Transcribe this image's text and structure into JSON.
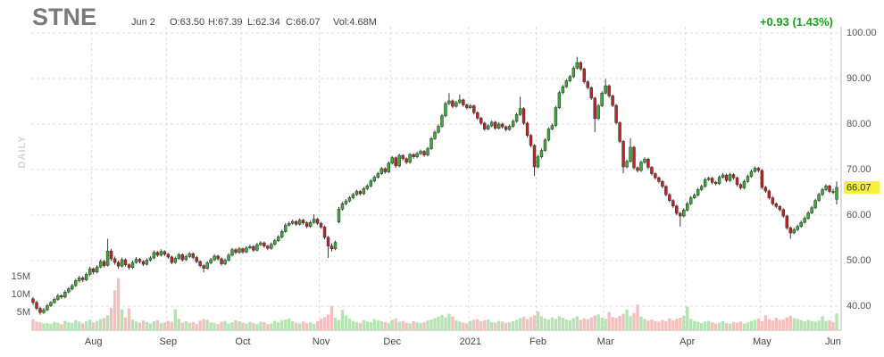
{
  "header": {
    "ticker": "STNE",
    "date": "Jun 2",
    "open": "O:63.50",
    "high": "H:67.39",
    "low": "L:62.34",
    "close": "C:66.07",
    "volume": "Vol:4.68M",
    "change": "+0.93 (1.43%)",
    "period": "DAILY"
  },
  "chart_data": {
    "type": "candlestick",
    "categories": [
      null,
      null,
      null,
      null,
      null,
      null,
      null,
      null,
      null,
      null,
      null,
      null,
      null,
      null,
      null,
      null,
      null,
      "Aug",
      null,
      null,
      null,
      null,
      null,
      null,
      null,
      null,
      null,
      null,
      null,
      null,
      null,
      null,
      null,
      null,
      null,
      null,
      null,
      null,
      "Sep",
      null,
      null,
      null,
      null,
      null,
      null,
      null,
      null,
      null,
      null,
      null,
      null,
      null,
      null,
      null,
      null,
      null,
      null,
      null,
      null,
      "Oct",
      null,
      null,
      null,
      null,
      null,
      null,
      null,
      null,
      null,
      null,
      null,
      null,
      null,
      null,
      null,
      null,
      null,
      null,
      null,
      null,
      null,
      "Nov",
      null,
      null,
      null,
      null,
      null,
      null,
      null,
      null,
      null,
      null,
      null,
      null,
      null,
      null,
      null,
      null,
      null,
      null,
      null,
      "Dec",
      null,
      null,
      null,
      null,
      null,
      null,
      null,
      null,
      null,
      null,
      null,
      null,
      null,
      null,
      null,
      null,
      null,
      null,
      null,
      null,
      null,
      "2021",
      null,
      null,
      null,
      null,
      null,
      null,
      null,
      null,
      null,
      null,
      null,
      null,
      null,
      null,
      null,
      null,
      null,
      null,
      "Feb",
      null,
      null,
      null,
      null,
      null,
      null,
      null,
      null,
      null,
      null,
      null,
      null,
      null,
      null,
      null,
      null,
      null,
      null,
      "Mar",
      null,
      null,
      null,
      null,
      null,
      null,
      null,
      null,
      null,
      null,
      null,
      null,
      null,
      null,
      null,
      null,
      null,
      null,
      null,
      null,
      null,
      null,
      "Apr",
      null,
      null,
      null,
      null,
      null,
      null,
      null,
      null,
      null,
      null,
      null,
      null,
      null,
      null,
      null,
      null,
      null,
      null,
      null,
      null,
      "May",
      null,
      null,
      null,
      null,
      null,
      null,
      null,
      null,
      null,
      null,
      null,
      null,
      null,
      null,
      null,
      null,
      null,
      null,
      null,
      "Jun",
      null
    ],
    "open": [
      41.6,
      40.8,
      39.5,
      38.6,
      39.2,
      40.1,
      40.8,
      41.5,
      42.3,
      42.0,
      43.1,
      43.8,
      44.5,
      45.6,
      46.2,
      45.8,
      47.0,
      48.2,
      47.5,
      48.6,
      49.8,
      49.0,
      52.1,
      50.4,
      49.6,
      48.8,
      50.2,
      49.1,
      48.5,
      49.6,
      50.3,
      49.8,
      49.2,
      50.1,
      50.6,
      51.8,
      51.2,
      52.0,
      51.4,
      50.8,
      49.6,
      50.5,
      51.3,
      50.2,
      50.9,
      51.5,
      50.7,
      49.8,
      48.9,
      48.3,
      49.5,
      50.2,
      51.0,
      50.4,
      49.3,
      50.1,
      51.2,
      52.4,
      51.8,
      52.6,
      51.9,
      52.8,
      53.1,
      52.3,
      53.5,
      53.9,
      53.2,
      52.7,
      53.6,
      54.4,
      55.2,
      56.4,
      57.8,
      58.2,
      58.6,
      58.0,
      58.9,
      58.3,
      57.5,
      58.4,
      59.1,
      58.2,
      57.4,
      55.1,
      53.2,
      52.6,
      58.5,
      61.3,
      62.5,
      63.1,
      63.8,
      64.5,
      65.2,
      64.7,
      65.8,
      66.4,
      67.5,
      68.3,
      69.1,
      70.2,
      69.5,
      71.4,
      72.6,
      70.8,
      73.1,
      72.4,
      71.6,
      73.3,
      72.8,
      73.5,
      74.0,
      73.2,
      74.6,
      76.8,
      78.2,
      79.5,
      81.8,
      84.5,
      85.1,
      83.9,
      84.7,
      85.3,
      84.2,
      83.6,
      84.0,
      82.5,
      81.3,
      80.2,
      78.9,
      79.6,
      80.4,
      79.1,
      80.0,
      79.4,
      78.8,
      79.5,
      80.6,
      82.1,
      83.4,
      80.2,
      77.5,
      75.3,
      70.6,
      72.8,
      74.2,
      76.5,
      78.9,
      79.7,
      83.6,
      86.9,
      88.2,
      89.5,
      90.4,
      92.3,
      93.5,
      92.1,
      89.3,
      88.0,
      85.7,
      81.2,
      84.0,
      86.8,
      88.4,
      86.2,
      84.1,
      80.3,
      76.2,
      70.6,
      71.8,
      74.9,
      70.4,
      69.8,
      71.6,
      72.3,
      70.5,
      69.1,
      68.2,
      67.4,
      66.3,
      64.5,
      63.2,
      62.0,
      60.4,
      59.8,
      61.1,
      62.5,
      63.8,
      64.4,
      65.6,
      66.3,
      67.8,
      68.1,
      67.2,
      66.9,
      68.3,
      68.8,
      67.6,
      68.9,
      68.2,
      66.7,
      66.0,
      67.4,
      68.5,
      69.6,
      70.3,
      69.8,
      66.1,
      65.3,
      63.8,
      62.5,
      61.9,
      61.2,
      59.8,
      57.2,
      56.1,
      56.8,
      57.5,
      58.4,
      59.3,
      60.5,
      61.6,
      63.2,
      64.5,
      65.6,
      66.4,
      65.2,
      63.5
    ],
    "high": [
      42.0,
      41.2,
      39.9,
      39.6,
      40.5,
      41.1,
      41.9,
      42.7,
      42.6,
      43.5,
      44.2,
      44.9,
      46.0,
      46.7,
      46.6,
      47.4,
      48.7,
      48.5,
      49.0,
      50.3,
      50.2,
      54.8,
      52.6,
      50.9,
      50.0,
      50.7,
      50.5,
      49.4,
      50.0,
      50.8,
      50.6,
      50.1,
      50.5,
      51.0,
      52.2,
      52.1,
      52.5,
      52.3,
      51.7,
      51.1,
      50.9,
      51.7,
      51.6,
      51.3,
      51.9,
      51.8,
      51.0,
      50.1,
      49.2,
      49.9,
      50.6,
      51.4,
      51.3,
      50.7,
      50.5,
      51.6,
      52.8,
      52.7,
      53.0,
      52.9,
      53.2,
      53.5,
      53.4,
      53.9,
      54.3,
      54.2,
      53.5,
      54.0,
      54.8,
      55.6,
      56.8,
      58.2,
      58.6,
      59.0,
      58.9,
      59.3,
      59.2,
      58.6,
      58.8,
      60.2,
      59.4,
      58.5,
      57.7,
      55.4,
      53.8,
      54.4,
      61.8,
      62.9,
      63.5,
      64.2,
      64.9,
      65.6,
      65.5,
      66.2,
      66.8,
      67.9,
      68.7,
      69.5,
      70.6,
      70.5,
      71.8,
      73.0,
      72.9,
      73.5,
      73.4,
      72.7,
      73.7,
      73.6,
      73.9,
      74.4,
      74.3,
      75.0,
      77.2,
      78.6,
      79.9,
      82.2,
      84.9,
      86.8,
      85.4,
      85.1,
      86.5,
      85.6,
      84.5,
      84.4,
      84.3,
      82.8,
      81.6,
      80.5,
      80.0,
      80.8,
      80.7,
      80.4,
      80.3,
      79.7,
      79.9,
      81.0,
      82.5,
      86.0,
      83.7,
      80.5,
      77.8,
      75.6,
      73.2,
      74.6,
      76.9,
      79.3,
      80.1,
      84.0,
      87.3,
      88.6,
      89.9,
      90.8,
      92.7,
      94.8,
      93.8,
      92.4,
      89.6,
      88.3,
      86.0,
      84.4,
      87.2,
      89.9,
      88.7,
      86.5,
      84.4,
      80.6,
      76.5,
      72.2,
      76.9,
      75.2,
      70.7,
      72.0,
      72.7,
      72.6,
      70.8,
      69.4,
      68.5,
      67.7,
      66.6,
      64.8,
      63.5,
      62.3,
      60.7,
      61.5,
      62.9,
      64.2,
      64.8,
      66.0,
      66.7,
      68.2,
      68.5,
      68.4,
      67.5,
      68.7,
      69.2,
      69.1,
      69.3,
      69.2,
      68.5,
      67.0,
      67.8,
      68.9,
      70.0,
      70.7,
      70.6,
      70.1,
      66.4,
      65.6,
      64.1,
      62.8,
      62.2,
      61.5,
      60.1,
      57.5,
      57.2,
      57.9,
      58.8,
      59.7,
      60.9,
      62.0,
      63.6,
      64.9,
      66.0,
      66.8,
      66.7,
      65.8,
      67.39
    ],
    "low": [
      40.3,
      39.1,
      38.1,
      38.3,
      38.9,
      39.8,
      40.5,
      41.2,
      41.6,
      41.7,
      42.8,
      43.4,
      44.2,
      45.2,
      45.3,
      45.5,
      46.6,
      47.0,
      47.2,
      48.3,
      48.5,
      48.7,
      49.9,
      49.1,
      48.2,
      48.5,
      48.7,
      48.0,
      48.2,
      49.3,
      49.4,
      48.8,
      48.9,
      49.8,
      50.3,
      50.8,
      50.9,
      51.0,
      50.4,
      49.2,
      49.3,
      50.2,
      49.8,
      49.9,
      50.6,
      50.3,
      49.4,
      48.5,
      47.4,
      48.0,
      49.2,
      49.9,
      50.0,
      48.9,
      49.0,
      49.8,
      50.9,
      51.4,
      51.5,
      51.5,
      51.6,
      52.5,
      51.9,
      52.0,
      53.2,
      52.8,
      52.3,
      52.4,
      53.3,
      54.1,
      54.9,
      56.1,
      57.5,
      57.9,
      57.6,
      57.7,
      57.9,
      57.1,
      57.2,
      58.1,
      57.8,
      57.0,
      54.7,
      50.6,
      52.0,
      52.3,
      58.2,
      61.0,
      62.2,
      62.8,
      63.5,
      64.2,
      64.3,
      64.4,
      65.5,
      66.1,
      67.2,
      68.0,
      68.8,
      69.1,
      69.2,
      71.1,
      70.4,
      70.5,
      72.0,
      71.2,
      71.3,
      72.4,
      72.5,
      73.2,
      72.8,
      72.9,
      74.3,
      76.5,
      77.9,
      79.2,
      81.5,
      84.2,
      83.5,
      83.6,
      84.4,
      83.8,
      83.2,
      83.3,
      82.1,
      80.9,
      79.8,
      78.5,
      78.6,
      79.3,
      78.7,
      78.8,
      79.0,
      78.4,
      78.5,
      79.2,
      80.3,
      81.8,
      79.8,
      77.1,
      74.9,
      68.6,
      70.3,
      72.5,
      73.9,
      76.2,
      78.6,
      79.4,
      83.3,
      86.6,
      87.9,
      89.2,
      90.1,
      92.0,
      91.7,
      88.9,
      87.6,
      85.3,
      78.2,
      80.9,
      83.7,
      86.5,
      85.8,
      83.7,
      79.9,
      75.8,
      69.2,
      70.3,
      71.5,
      70.0,
      69.4,
      69.5,
      71.3,
      70.1,
      68.7,
      67.8,
      67.0,
      65.9,
      64.1,
      62.8,
      61.6,
      60.0,
      57.5,
      59.5,
      60.8,
      62.2,
      63.5,
      64.1,
      65.3,
      66.0,
      67.5,
      66.8,
      66.5,
      66.6,
      68.0,
      67.2,
      67.3,
      67.8,
      66.3,
      65.6,
      65.7,
      67.1,
      68.2,
      69.3,
      69.4,
      65.7,
      64.9,
      63.4,
      62.1,
      61.5,
      60.8,
      59.4,
      56.8,
      54.8,
      55.8,
      56.5,
      57.2,
      58.1,
      59.0,
      60.2,
      61.3,
      62.9,
      64.2,
      65.3,
      64.8,
      64.6,
      62.34
    ],
    "close": [
      40.8,
      39.5,
      38.6,
      39.2,
      40.1,
      40.8,
      41.5,
      42.3,
      42.0,
      43.1,
      43.8,
      44.5,
      45.6,
      46.2,
      45.8,
      47.0,
      48.2,
      47.5,
      48.6,
      49.8,
      48.9,
      52.1,
      50.4,
      49.6,
      48.8,
      50.2,
      49.1,
      48.5,
      49.6,
      50.3,
      49.8,
      49.2,
      50.1,
      50.6,
      51.8,
      51.2,
      52.0,
      51.4,
      50.8,
      49.6,
      50.5,
      51.3,
      50.2,
      50.9,
      51.5,
      50.7,
      49.8,
      48.9,
      48.3,
      49.5,
      50.2,
      51.0,
      50.4,
      49.3,
      50.1,
      51.2,
      52.4,
      51.8,
      52.6,
      51.9,
      52.8,
      53.1,
      52.3,
      53.5,
      53.9,
      53.2,
      52.7,
      53.6,
      54.4,
      55.2,
      56.4,
      57.8,
      58.2,
      58.6,
      58.0,
      58.9,
      58.3,
      57.5,
      58.4,
      59.1,
      58.2,
      57.4,
      55.1,
      53.2,
      52.6,
      54.0,
      61.3,
      62.5,
      63.1,
      63.8,
      64.5,
      65.2,
      64.7,
      65.8,
      66.4,
      67.5,
      68.3,
      69.1,
      70.2,
      69.5,
      71.4,
      72.6,
      70.8,
      73.1,
      72.4,
      71.6,
      73.3,
      72.8,
      73.5,
      74.0,
      73.2,
      74.6,
      76.8,
      78.2,
      79.5,
      81.8,
      84.5,
      85.1,
      83.9,
      84.7,
      85.3,
      84.2,
      83.6,
      84.0,
      82.5,
      81.3,
      80.2,
      78.9,
      79.6,
      80.4,
      79.1,
      80.0,
      79.4,
      78.8,
      79.5,
      80.6,
      82.1,
      83.4,
      80.2,
      77.5,
      75.3,
      70.6,
      72.8,
      74.2,
      76.5,
      78.9,
      79.7,
      83.6,
      86.9,
      88.2,
      89.5,
      90.4,
      92.3,
      93.5,
      92.1,
      89.3,
      88.0,
      85.7,
      81.2,
      84.0,
      86.8,
      88.4,
      86.2,
      84.1,
      80.3,
      76.2,
      70.6,
      71.8,
      74.9,
      70.4,
      69.8,
      71.6,
      72.3,
      70.5,
      69.1,
      68.2,
      67.4,
      66.3,
      64.5,
      63.2,
      62.0,
      60.4,
      59.8,
      61.1,
      62.5,
      63.8,
      64.4,
      65.6,
      66.3,
      67.8,
      68.1,
      67.2,
      66.9,
      68.3,
      68.8,
      67.6,
      68.9,
      68.2,
      66.7,
      66.0,
      67.4,
      68.5,
      69.6,
      70.3,
      69.8,
      66.1,
      65.3,
      63.8,
      62.5,
      61.9,
      61.2,
      59.8,
      57.2,
      56.1,
      56.8,
      57.5,
      58.4,
      59.3,
      60.5,
      61.6,
      63.2,
      64.5,
      65.6,
      66.4,
      65.2,
      65.14,
      66.07
    ],
    "volume": [
      3.1,
      2.4,
      2.2,
      1.9,
      2.0,
      1.8,
      2.3,
      2.1,
      1.7,
      2.6,
      2.2,
      2.0,
      2.8,
      2.4,
      1.9,
      2.5,
      3.0,
      2.2,
      2.6,
      3.1,
      3.4,
      4.2,
      6.3,
      11.2,
      14.6,
      5.8,
      3.6,
      6.1,
      3.0,
      2.4,
      2.1,
      2.7,
      2.3,
      1.9,
      2.5,
      2.8,
      2.0,
      2.2,
      2.6,
      2.4,
      5.9,
      3.2,
      2.1,
      2.5,
      2.0,
      2.3,
      1.8,
      2.7,
      3.1,
      2.9,
      2.2,
      2.0,
      1.7,
      2.4,
      2.6,
      1.9,
      2.2,
      2.8,
      2.5,
      2.1,
      1.9,
      2.3,
      2.0,
      1.8,
      2.4,
      2.2,
      1.7,
      1.9,
      2.6,
      2.3,
      2.8,
      3.0,
      3.3,
      2.5,
      2.1,
      1.9,
      2.4,
      2.0,
      2.2,
      1.8,
      2.5,
      3.2,
      3.6,
      4.4,
      6.8,
      3.5,
      2.9,
      5.7,
      4.1,
      3.2,
      2.6,
      2.3,
      2.0,
      2.8,
      2.4,
      2.2,
      3.1,
      2.7,
      2.5,
      2.3,
      2.0,
      2.9,
      3.3,
      2.4,
      2.6,
      2.1,
      1.9,
      2.5,
      2.2,
      2.0,
      2.3,
      2.7,
      3.0,
      3.4,
      3.8,
      4.3,
      3.6,
      4.6,
      3.9,
      2.8,
      2.4,
      2.1,
      1.9,
      2.6,
      2.9,
      3.1,
      2.5,
      2.8,
      3.0,
      2.3,
      2.1,
      2.6,
      2.4,
      2.0,
      2.2,
      2.5,
      2.9,
      3.4,
      3.8,
      3.1,
      3.7,
      4.2,
      5.3,
      3.9,
      3.3,
      3.0,
      3.6,
      3.2,
      3.9,
      3.5,
      3.0,
      2.8,
      3.4,
      3.9,
      2.9,
      3.3,
      3.1,
      3.6,
      4.1,
      4.4,
      3.5,
      3.2,
      5.1,
      3.7,
      3.4,
      4.0,
      4.6,
      5.8,
      3.9,
      4.8,
      7.2,
      3.8,
      3.1,
      2.7,
      3.0,
      2.6,
      2.4,
      2.9,
      2.5,
      3.3,
      2.8,
      3.2,
      3.5,
      4.1,
      6.6,
      3.2,
      2.6,
      2.3,
      2.0,
      2.4,
      2.6,
      2.2,
      1.9,
      2.1,
      2.5,
      2.0,
      1.8,
      2.3,
      2.1,
      2.4,
      1.9,
      2.2,
      2.6,
      2.9,
      3.3,
      2.5,
      4.2,
      3.1,
      2.7,
      3.5,
      2.9,
      3.0,
      3.6,
      4.0,
      3.4,
      3.2,
      2.8,
      2.5,
      2.9,
      2.6,
      2.4,
      2.7,
      3.9,
      2.6,
      2.8,
      2.3,
      4.68
    ],
    "ylim": [
      34.71,
      101.37
    ],
    "yticks": [
      {
        "value": 100,
        "label": "100.00"
      },
      {
        "value": 90,
        "label": "90.00"
      },
      {
        "value": 80,
        "label": "80.00"
      },
      {
        "value": 70,
        "label": "70.00"
      },
      {
        "value": 60,
        "label": "60.00"
      },
      {
        "value": 50,
        "label": "50.00"
      },
      {
        "value": 40,
        "label": "40.00"
      }
    ],
    "volume_ylim": [
      0,
      15
    ],
    "volume_ticks": [
      {
        "value": 5,
        "label": "5M"
      },
      {
        "value": 10,
        "label": "10M"
      },
      {
        "value": 15,
        "label": "15M"
      }
    ],
    "grid": true,
    "up_color": "#35b035",
    "down_color": "#c91f1f",
    "volume_up_color": "#b7e2b1",
    "volume_down_color": "#f3c0c0",
    "last_price_color": "#f5f03c"
  }
}
